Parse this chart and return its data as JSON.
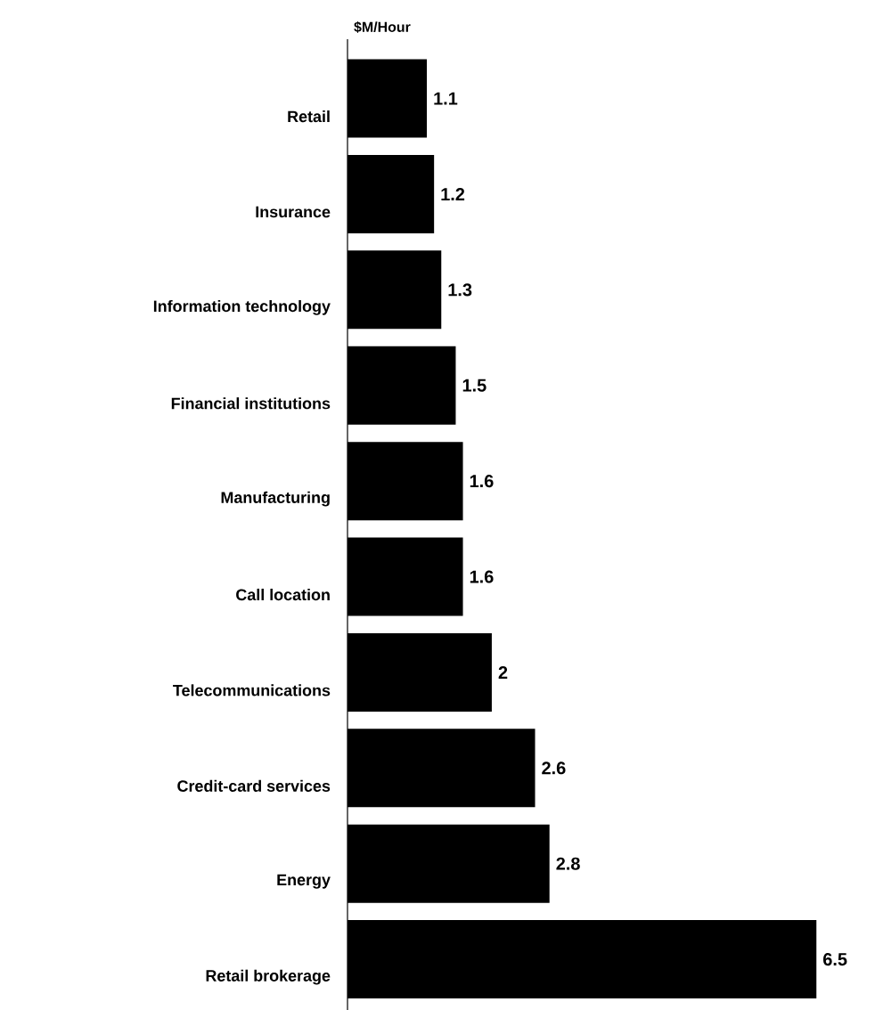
{
  "chart_data": {
    "type": "bar",
    "orientation": "horizontal",
    "title": "$M/Hour",
    "categories": [
      "Retail",
      "Insurance",
      "Information technology",
      "Financial institutions",
      "Manufacturing",
      "Call location",
      "Telecommunications",
      "Credit-card services",
      "Energy",
      "Retail brokerage"
    ],
    "values": [
      1.1,
      1.2,
      1.3,
      1.5,
      1.6,
      1.6,
      2,
      2.6,
      2.8,
      6.5
    ],
    "color": "#000000",
    "data_labels": true
  }
}
